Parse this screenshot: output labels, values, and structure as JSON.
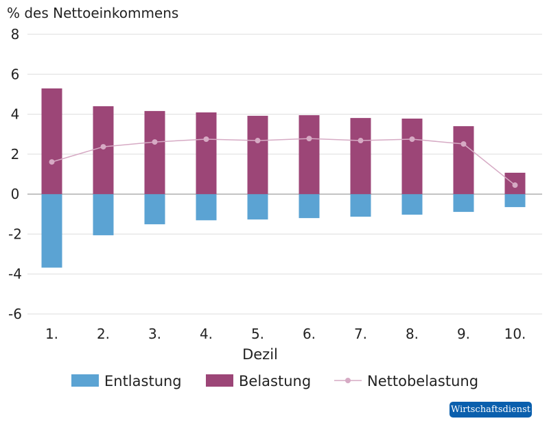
{
  "chart_data": {
    "type": "bar",
    "stacked": true,
    "ylabel": "% des Nettoeinkommens",
    "xlabel": "Dezil",
    "ylim": [
      -6,
      8
    ],
    "yticks": [
      "8",
      "6",
      "4",
      "2",
      "0",
      "-2",
      "-4",
      "-6"
    ],
    "ytick_values": [
      8,
      6,
      4,
      2,
      0,
      -2,
      -4,
      -6
    ],
    "grid": true,
    "legend_position": "bottom",
    "categories": [
      "1.",
      "2.",
      "3.",
      "4.",
      "5.",
      "6.",
      "7.",
      "8.",
      "9.",
      "10."
    ],
    "series": [
      {
        "name": "Entlastung",
        "type": "bar",
        "color": "#5ba3d3",
        "values": [
          -3.68,
          -2.06,
          -1.51,
          -1.31,
          -1.27,
          -1.2,
          -1.13,
          -1.03,
          -0.89,
          -0.65
        ]
      },
      {
        "name": "Belastung",
        "type": "bar",
        "color": "#9c4677",
        "values": [
          5.29,
          4.4,
          4.16,
          4.09,
          3.92,
          3.95,
          3.81,
          3.78,
          3.4,
          1.07
        ]
      },
      {
        "name": "Nettobelastung",
        "type": "line",
        "color": "#d6aac4",
        "values": [
          1.61,
          2.37,
          2.61,
          2.75,
          2.68,
          2.78,
          2.68,
          2.75,
          2.51,
          0.45
        ]
      }
    ]
  },
  "branding": {
    "logo_text": "Wirtschaftsdienst",
    "logo_color": "#0a5fad"
  }
}
